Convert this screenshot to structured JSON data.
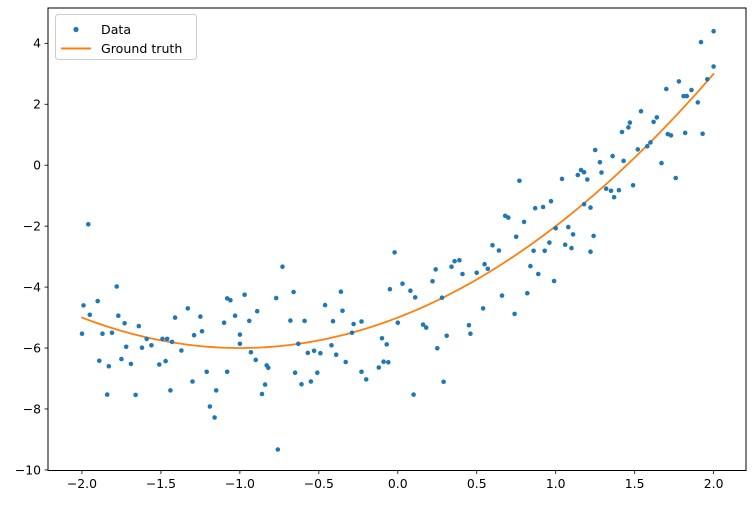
{
  "figure": {
    "background": "#ffffff",
    "kind": "matplotlib-style scatter plot with ground-truth curve"
  },
  "chart_data": {
    "type": "scatter",
    "title": "",
    "xlabel": "",
    "ylabel": "",
    "grid": false,
    "xlim": [
      -2.215,
      2.205
    ],
    "ylim": [
      -10.02,
      5.16
    ],
    "x_tick_values": [
      -2.0,
      -1.5,
      -1.0,
      -0.5,
      0.0,
      0.5,
      1.0,
      1.5,
      2.0
    ],
    "x_tick_labels": [
      "−2.0",
      "−1.5",
      "−1.0",
      "−0.5",
      "0.0",
      "0.5",
      "1.0",
      "1.5",
      "2.0"
    ],
    "y_tick_values": [
      4,
      2,
      0,
      -2,
      -4,
      -6,
      -8,
      -10
    ],
    "y_tick_labels": [
      "4",
      "2",
      "0",
      "−2",
      "−4",
      "−6",
      "−8",
      "−10"
    ],
    "legend": {
      "position": "upper left",
      "entries": [
        {
          "label": "Data",
          "marker": "dot",
          "color": "#1f77b4"
        },
        {
          "label": "Ground truth",
          "marker": "line",
          "color": "#ff7f0e"
        }
      ]
    },
    "series": [
      {
        "name": "Data",
        "type": "scatter",
        "color": "#1f77b4",
        "points": [
          [
            -1.96,
            -1.94
          ],
          [
            -1.78,
            -3.98
          ],
          [
            -1.99,
            -4.6
          ],
          [
            -1.9,
            -4.46
          ],
          [
            -1.95,
            -4.91
          ],
          [
            -1.77,
            -4.94
          ],
          [
            -1.41,
            -5.0
          ],
          [
            -1.33,
            -4.7
          ],
          [
            -1.25,
            -4.97
          ],
          [
            -1.08,
            -4.37
          ],
          [
            -1.06,
            -4.43
          ],
          [
            -0.97,
            -4.25
          ],
          [
            -0.89,
            -4.79
          ],
          [
            -1.03,
            -4.94
          ],
          [
            -0.77,
            -4.36
          ],
          [
            -0.73,
            -3.33
          ],
          [
            -0.66,
            -4.16
          ],
          [
            -0.46,
            -4.59
          ],
          [
            -0.36,
            -4.15
          ],
          [
            -0.35,
            -4.78
          ],
          [
            -0.02,
            -2.86
          ],
          [
            -0.05,
            -4.07
          ],
          [
            0.03,
            -3.89
          ],
          [
            0.08,
            -4.12
          ],
          [
            0.11,
            -4.34
          ],
          [
            0.22,
            -3.81
          ],
          [
            0.24,
            -3.42
          ],
          [
            0.28,
            -4.35
          ],
          [
            0.34,
            -3.33
          ],
          [
            0.36,
            -3.15
          ],
          [
            0.39,
            -3.12
          ],
          [
            0.41,
            -3.57
          ],
          [
            0.5,
            -3.53
          ],
          [
            0.55,
            -3.25
          ],
          [
            0.57,
            -3.4
          ],
          [
            0.6,
            -2.63
          ],
          [
            0.64,
            -2.8
          ],
          [
            0.68,
            -1.66
          ],
          [
            0.7,
            -1.72
          ],
          [
            0.54,
            -4.7
          ],
          [
            0.66,
            -4.28
          ],
          [
            0.74,
            -4.88
          ],
          [
            0.77,
            -0.51
          ],
          [
            1.04,
            -0.45
          ],
          [
            1.14,
            -0.32
          ],
          [
            1.16,
            -0.16
          ],
          [
            1.18,
            -0.23
          ],
          [
            1.2,
            -0.47
          ],
          [
            1.29,
            -0.24
          ],
          [
            1.32,
            -0.77
          ],
          [
            1.35,
            -0.84
          ],
          [
            1.4,
            -0.82
          ],
          [
            1.49,
            -0.66
          ],
          [
            1.76,
            -0.42
          ],
          [
            0.87,
            -1.41
          ],
          [
            0.92,
            -1.37
          ],
          [
            0.97,
            -1.18
          ],
          [
            1.18,
            -1.28
          ],
          [
            1.22,
            -1.39
          ],
          [
            1.37,
            -1.05
          ],
          [
            0.8,
            -1.86
          ],
          [
            1.0,
            -2.07
          ],
          [
            1.08,
            -2.03
          ],
          [
            1.11,
            -2.27
          ],
          [
            0.75,
            -2.35
          ],
          [
            1.24,
            -2.32
          ],
          [
            0.96,
            -2.54
          ],
          [
            1.06,
            -2.61
          ],
          [
            0.86,
            -2.81
          ],
          [
            0.93,
            -2.81
          ],
          [
            1.1,
            -2.72
          ],
          [
            1.22,
            -2.84
          ],
          [
            0.84,
            -3.31
          ],
          [
            0.89,
            -3.57
          ],
          [
            0.99,
            -3.8
          ],
          [
            0.82,
            -4.2
          ],
          [
            2.0,
            4.4
          ],
          [
            1.92,
            4.04
          ],
          [
            2.0,
            3.24
          ],
          [
            1.96,
            2.82
          ],
          [
            1.78,
            2.75
          ],
          [
            1.86,
            2.47
          ],
          [
            1.7,
            2.5
          ],
          [
            1.81,
            2.27
          ],
          [
            1.83,
            2.27
          ],
          [
            1.9,
            2.06
          ],
          [
            1.54,
            1.77
          ],
          [
            1.64,
            1.57
          ],
          [
            1.62,
            1.42
          ],
          [
            1.47,
            1.4
          ],
          [
            1.46,
            1.24
          ],
          [
            1.42,
            1.09
          ],
          [
            1.82,
            1.06
          ],
          [
            1.93,
            1.03
          ],
          [
            1.73,
            0.98
          ],
          [
            1.71,
            1.02
          ],
          [
            1.25,
            0.5
          ],
          [
            1.6,
            0.75
          ],
          [
            1.58,
            0.62
          ],
          [
            1.36,
            0.3
          ],
          [
            1.28,
            0.1
          ],
          [
            1.67,
            0.07
          ],
          [
            1.43,
            0.14
          ],
          [
            1.52,
            0.52
          ],
          [
            -2.0,
            -5.53
          ],
          [
            -1.87,
            -5.53
          ],
          [
            -1.81,
            -5.5
          ],
          [
            -1.73,
            -5.19
          ],
          [
            -1.64,
            -5.28
          ],
          [
            -1.59,
            -5.7
          ],
          [
            -1.62,
            -5.99
          ],
          [
            -1.56,
            -5.91
          ],
          [
            -1.72,
            -5.96
          ],
          [
            -1.49,
            -5.7
          ],
          [
            -1.46,
            -5.7
          ],
          [
            -1.43,
            -5.8
          ],
          [
            -1.37,
            -6.08
          ],
          [
            -1.29,
            -5.58
          ],
          [
            -1.24,
            -5.45
          ],
          [
            -1.1,
            -5.17
          ],
          [
            -1.0,
            -5.56
          ],
          [
            -1.0,
            -5.86
          ],
          [
            -0.94,
            -5.11
          ],
          [
            -0.93,
            -6.14
          ],
          [
            -0.9,
            -6.39
          ],
          [
            -0.83,
            -6.57
          ],
          [
            -0.82,
            -6.65
          ],
          [
            -1.89,
            -6.42
          ],
          [
            -1.83,
            -6.6
          ],
          [
            -1.75,
            -6.36
          ],
          [
            -1.69,
            -6.52
          ],
          [
            -1.51,
            -6.54
          ],
          [
            -1.47,
            -6.43
          ],
          [
            -1.21,
            -6.78
          ],
          [
            -1.08,
            -6.78
          ],
          [
            -1.3,
            -7.1
          ],
          [
            -1.44,
            -7.39
          ],
          [
            -0.84,
            -7.2
          ],
          [
            -0.86,
            -7.51
          ],
          [
            -1.15,
            -7.39
          ],
          [
            -1.84,
            -7.53
          ],
          [
            -1.66,
            -7.54
          ],
          [
            -1.19,
            -7.92
          ],
          [
            -1.16,
            -8.28
          ],
          [
            -0.76,
            -9.33
          ],
          [
            -0.68,
            -5.1
          ],
          [
            -0.59,
            -5.11
          ],
          [
            -0.41,
            -5.12
          ],
          [
            -0.28,
            -5.21
          ],
          [
            -0.23,
            -5.13
          ],
          [
            0.0,
            -5.17
          ],
          [
            0.16,
            -5.23
          ],
          [
            0.18,
            -5.33
          ],
          [
            0.45,
            -5.25
          ],
          [
            0.46,
            -5.53
          ],
          [
            -0.1,
            -5.68
          ],
          [
            -0.07,
            -5.88
          ],
          [
            -0.63,
            -5.86
          ],
          [
            -0.57,
            -6.16
          ],
          [
            -0.53,
            -6.09
          ],
          [
            -0.49,
            -6.17
          ],
          [
            -0.42,
            -5.91
          ],
          [
            -0.39,
            -6.22
          ],
          [
            -0.33,
            -6.46
          ],
          [
            -0.29,
            -5.5
          ],
          [
            -0.23,
            -6.78
          ],
          [
            -0.2,
            -7.03
          ],
          [
            -0.12,
            -6.64
          ],
          [
            -0.09,
            -6.45
          ],
          [
            -0.06,
            -6.47
          ],
          [
            -0.65,
            -6.81
          ],
          [
            -0.61,
            -7.19
          ],
          [
            -0.55,
            -7.1
          ],
          [
            -0.51,
            -6.81
          ],
          [
            0.1,
            -7.53
          ],
          [
            0.25,
            -6.01
          ],
          [
            0.29,
            -7.11
          ],
          [
            0.31,
            -5.6
          ]
        ]
      },
      {
        "name": "Ground truth",
        "type": "line",
        "color": "#ff7f0e",
        "model": "polynomial",
        "coefficients": [
          1,
          2,
          -5
        ],
        "equation": "y = x² + 2x − 5",
        "x_range": [
          -2.0,
          2.0
        ]
      }
    ]
  }
}
